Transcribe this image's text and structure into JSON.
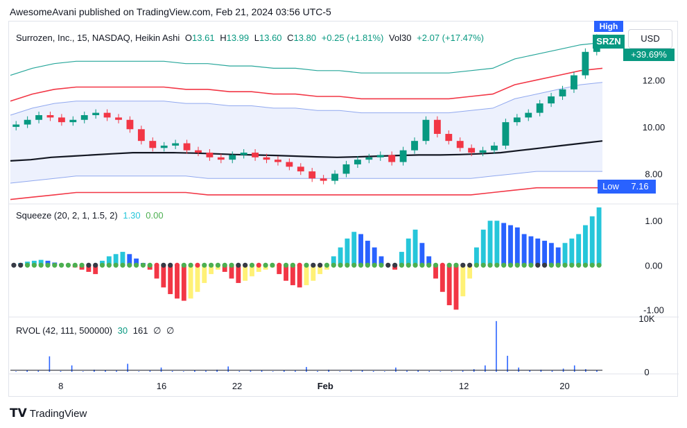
{
  "header": {
    "publish_line": "AwesomeAvani published on TradingView.com, Feb 21, 2024 03:56 UTC-5"
  },
  "toolbar": {
    "currency_button": "USD"
  },
  "logo": {
    "text": "TradingView",
    "icon": "tradingview-logo-icon"
  },
  "colors": {
    "up": "#089981",
    "down": "#f23645",
    "purple": "#673ab7",
    "teal": "#26a69a",
    "squeeze_on": "#4caf50",
    "squeeze_off": "#f23645",
    "squeeze_none": "#363a45",
    "mom_up_strong": "#2962ff",
    "mom_up_weak": "#26c6da",
    "mom_dn_strong": "#f23645",
    "mom_dn_weak": "#fff176"
  },
  "chart_data": [
    {
      "type": "candlestick",
      "legend": {
        "symbol": "Surrozen, Inc., 15, NASDAQ, Heikin Ashi",
        "o_label": "O",
        "o": "13.61",
        "h_label": "H",
        "h": "13.99",
        "l_label": "L",
        "l": "13.60",
        "c_label": "C",
        "c": "13.80",
        "change": "+0.25 (+1.81%)",
        "vol_label": "Vol30",
        "vol_change": "+2.07 (+17.47%)"
      },
      "price_labels": {
        "high_label": "High",
        "symbol_tag": "SRZN",
        "pct_tag": "+39.69%",
        "low_label": "Low",
        "low_value": "7.16"
      },
      "yticks": [
        "12.00",
        "10.00",
        "8.00"
      ],
      "ytick_values": [
        12,
        10,
        8
      ],
      "ylim": [
        6.8,
        14.2
      ],
      "xticks": [
        "8",
        "16",
        "22",
        "Feb",
        "12",
        "20"
      ],
      "xtick_positions": [
        5,
        13,
        19,
        26,
        37,
        45
      ],
      "xlim": [
        1,
        48
      ],
      "candles_close": [
        10.1,
        10.3,
        10.5,
        10.4,
        10.2,
        10.3,
        10.5,
        10.6,
        10.4,
        10.3,
        9.9,
        9.4,
        9.1,
        9.2,
        9.3,
        9.0,
        8.9,
        8.7,
        8.6,
        8.8,
        8.9,
        8.7,
        8.6,
        8.5,
        8.3,
        8.1,
        7.8,
        7.7,
        8.0,
        8.4,
        8.6,
        8.7,
        8.8,
        8.5,
        9.0,
        9.4,
        10.3,
        9.7,
        9.4,
        9.1,
        8.9,
        9.0,
        9.2,
        10.2,
        10.4,
        10.6,
        11.0,
        11.3,
        11.6,
        12.2,
        13.2,
        13.8
      ],
      "vwap": [
        8.55,
        8.6,
        8.7,
        8.75,
        8.8,
        8.85,
        8.9,
        8.9,
        8.9,
        8.88,
        8.85,
        8.82,
        8.8,
        8.78,
        8.75,
        8.72,
        8.7,
        8.72,
        8.75,
        8.78,
        8.8,
        8.8,
        8.82,
        8.85,
        8.9,
        9.0,
        9.1,
        9.2,
        9.3,
        9.4
      ],
      "upper_band": [
        10.5,
        10.8,
        11.0,
        11.1,
        11.1,
        11.1,
        11.1,
        11.1,
        11.0,
        11.0,
        10.9,
        10.9,
        10.8,
        10.8,
        10.7,
        10.7,
        10.6,
        10.6,
        10.6,
        10.6,
        10.6,
        10.7,
        10.8,
        11.2,
        11.4,
        11.6,
        11.8,
        11.9
      ],
      "lower_band": [
        7.6,
        7.7,
        7.8,
        7.9,
        7.9,
        7.9,
        7.9,
        7.9,
        7.9,
        7.8,
        7.8,
        7.8,
        7.8,
        7.8,
        7.8,
        7.8,
        7.8,
        7.8,
        7.8,
        7.8,
        7.8,
        7.8,
        7.9,
        8.0,
        8.1,
        8.1,
        8.1,
        8.1
      ]
    },
    {
      "type": "bar",
      "legend": {
        "name": "Squeeze (20, 2, 1, 1.5, 2)",
        "v1": "1.30",
        "v2": "0.00"
      },
      "yticks": [
        "1.00",
        "0.00",
        "-1.00"
      ],
      "ytick_values": [
        1,
        0,
        -1
      ],
      "ylim": [
        -1.15,
        1.3
      ],
      "momentum": [
        0.02,
        0.05,
        0.08,
        0.1,
        0.12,
        0.1,
        0.06,
        0.03,
        0.0,
        -0.05,
        -0.1,
        -0.15,
        -0.2,
        0.1,
        0.2,
        0.25,
        0.3,
        0.25,
        0.15,
        0.05,
        -0.1,
        -0.3,
        -0.5,
        -0.65,
        -0.75,
        -0.8,
        -0.75,
        -0.6,
        -0.4,
        -0.2,
        -0.1,
        -0.15,
        -0.3,
        -0.4,
        -0.35,
        -0.25,
        -0.15,
        -0.1,
        -0.05,
        -0.2,
        -0.35,
        -0.45,
        -0.5,
        -0.45,
        -0.35,
        -0.2,
        -0.1,
        0.2,
        0.4,
        0.6,
        0.75,
        0.7,
        0.55,
        0.4,
        0.2,
        0.0,
        -0.1,
        0.3,
        0.6,
        0.8,
        0.5,
        0.2,
        -0.3,
        -0.6,
        -0.9,
        -1.0,
        -0.7,
        -0.3,
        0.4,
        0.8,
        1.0,
        1.0,
        0.95,
        0.9,
        0.85,
        0.7,
        0.65,
        0.6,
        0.55,
        0.5,
        0.4,
        0.5,
        0.6,
        0.7,
        0.9,
        1.1,
        1.3
      ]
    },
    {
      "type": "bar",
      "legend": {
        "name": "RVOL (42, 111, 500000)",
        "v1": "30",
        "v2": "161",
        "v3": "∅",
        "v4": "∅"
      },
      "yticks": [
        "10K",
        "0"
      ],
      "ytick_values": [
        10000,
        0
      ],
      "ylim": [
        0,
        10000
      ],
      "volume": [
        100,
        300,
        200,
        2900,
        150,
        1200,
        100,
        400,
        300,
        200,
        1500,
        100,
        200,
        800,
        150,
        100,
        300,
        200,
        400,
        1000,
        150,
        200,
        250,
        100,
        300,
        200,
        900,
        150,
        400,
        100,
        200,
        300,
        150,
        100,
        800,
        200,
        300,
        150,
        100,
        100,
        200,
        500,
        1200,
        9500,
        3000,
        800,
        300,
        400,
        200,
        600,
        1200,
        500,
        300
      ]
    }
  ]
}
